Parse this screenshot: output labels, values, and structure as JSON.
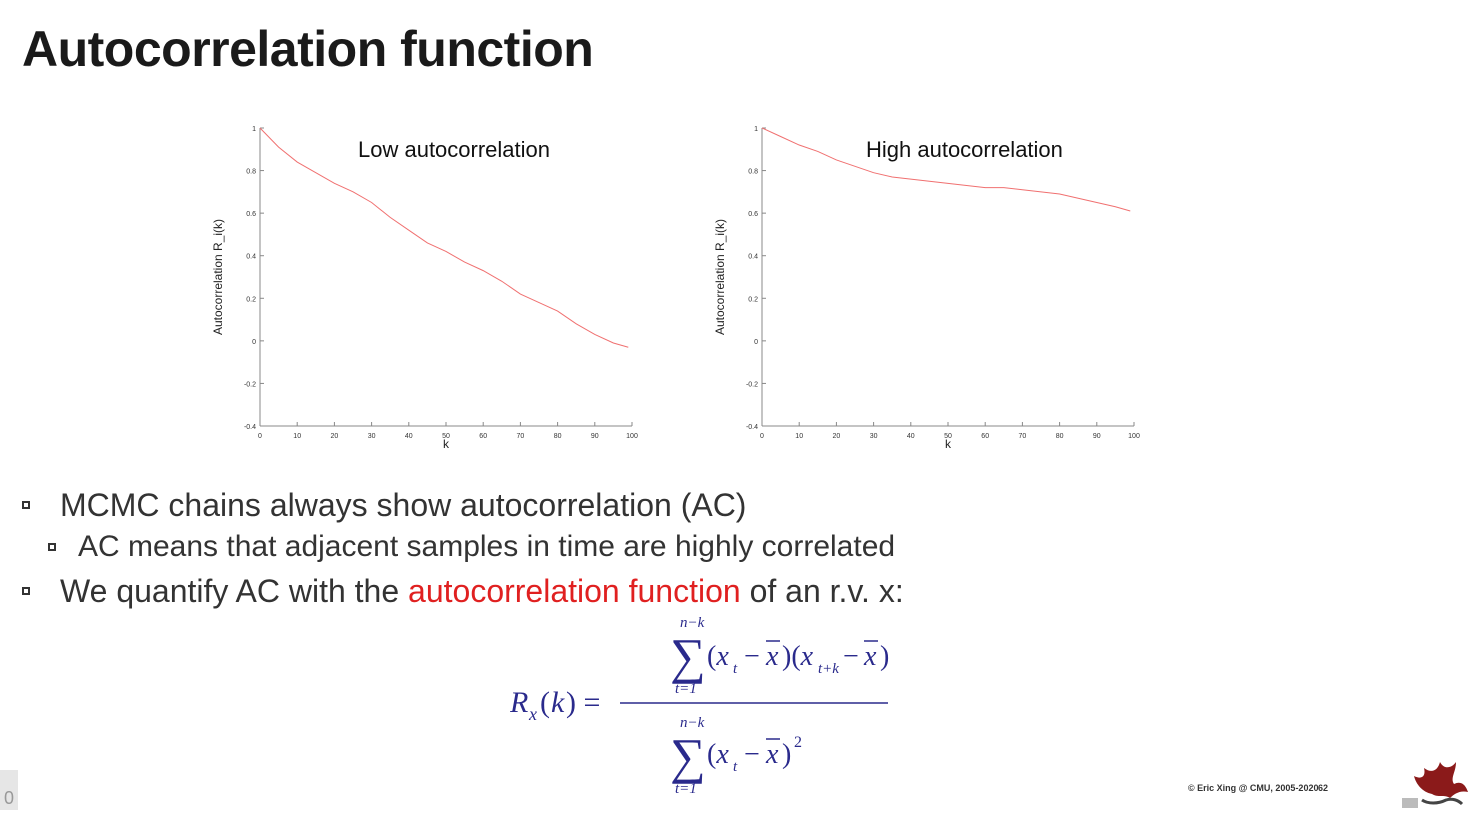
{
  "slide": {
    "title": "Autocorrelation function",
    "footer": "© Eric Xing @ CMU, 2005-2020",
    "page_number": "62",
    "corner_number": "0"
  },
  "bullets": {
    "b1": "MCMC chains always show autocorrelation (AC)",
    "b2": "AC means that adjacent samples in time are highly correlated",
    "b3_pre": "We quantify AC with the ",
    "b3_red": "autocorrelation function",
    "b3_post": " of an r.v. x:"
  },
  "colors": {
    "accent": "#e02020",
    "formula": "#2a2a8c",
    "series": "#f07070"
  },
  "chart_data": [
    {
      "type": "line",
      "annotation": "Low autocorrelation",
      "xlabel": "k",
      "ylabel": "Autocorrelation R_i(k)",
      "xlim": [
        0,
        100
      ],
      "ylim": [
        -0.4,
        1
      ],
      "xticks": [
        "0",
        "10",
        "20",
        "30",
        "40",
        "50",
        "60",
        "70",
        "80",
        "90",
        "100"
      ],
      "yticks": [
        "-0.4",
        "-0.2",
        "0",
        "0.2",
        "0.4",
        "0.6",
        "0.8",
        "1"
      ],
      "series": [
        {
          "x": [
            0,
            5,
            10,
            15,
            20,
            25,
            30,
            35,
            40,
            45,
            50,
            55,
            60,
            65,
            70,
            75,
            80,
            85,
            90,
            95,
            99
          ],
          "values": [
            1,
            0.91,
            0.84,
            0.79,
            0.74,
            0.7,
            0.65,
            0.58,
            0.52,
            0.46,
            0.42,
            0.37,
            0.33,
            0.28,
            0.22,
            0.18,
            0.14,
            0.08,
            0.03,
            -0.01,
            -0.03
          ]
        }
      ]
    },
    {
      "type": "line",
      "annotation": "High autocorrelation",
      "xlabel": "k",
      "ylabel": "Autocorrelation R_i(k)",
      "xlim": [
        0,
        100
      ],
      "ylim": [
        -0.4,
        1
      ],
      "xticks": [
        "0",
        "10",
        "20",
        "30",
        "40",
        "50",
        "60",
        "70",
        "80",
        "90",
        "100"
      ],
      "yticks": [
        "-0.4",
        "-0.2",
        "0",
        "0.2",
        "0.4",
        "0.6",
        "0.8",
        "1"
      ],
      "series": [
        {
          "x": [
            0,
            5,
            10,
            15,
            20,
            25,
            30,
            35,
            40,
            45,
            50,
            55,
            60,
            65,
            70,
            75,
            80,
            85,
            90,
            95,
            99
          ],
          "values": [
            1,
            0.96,
            0.92,
            0.89,
            0.85,
            0.82,
            0.79,
            0.77,
            0.76,
            0.75,
            0.74,
            0.73,
            0.72,
            0.72,
            0.71,
            0.7,
            0.69,
            0.67,
            0.65,
            0.63,
            0.61
          ]
        }
      ]
    }
  ]
}
